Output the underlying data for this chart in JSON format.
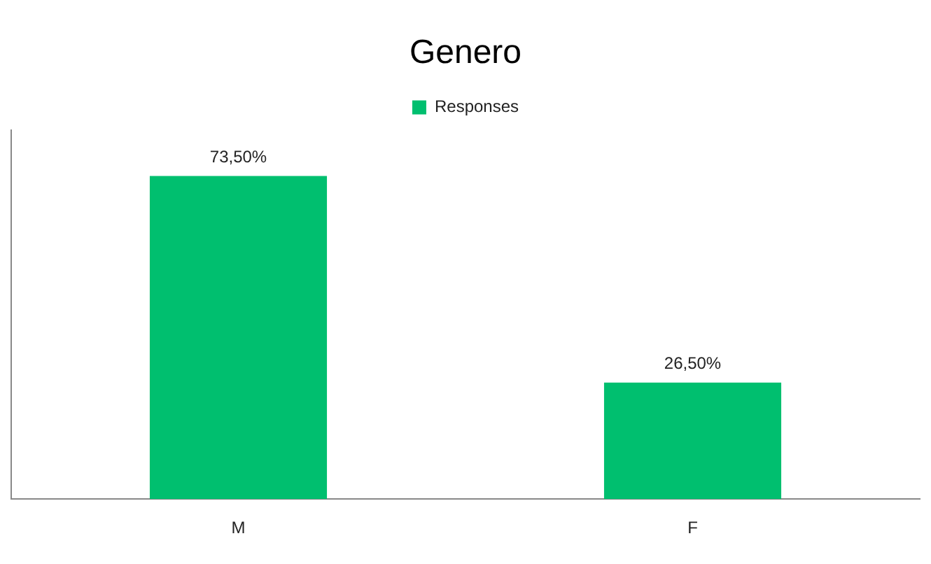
{
  "chart_data": {
    "type": "bar",
    "title": "Genero",
    "categories": [
      "M",
      "F"
    ],
    "series": [
      {
        "name": "Responses",
        "color": "#00bf6f",
        "values": [
          73.5,
          26.5
        ],
        "value_labels": [
          "73,50%",
          "26,50%"
        ]
      }
    ],
    "ylim": [
      0,
      84
    ],
    "tick_labels": "x",
    "grid": false,
    "legend": "top"
  }
}
